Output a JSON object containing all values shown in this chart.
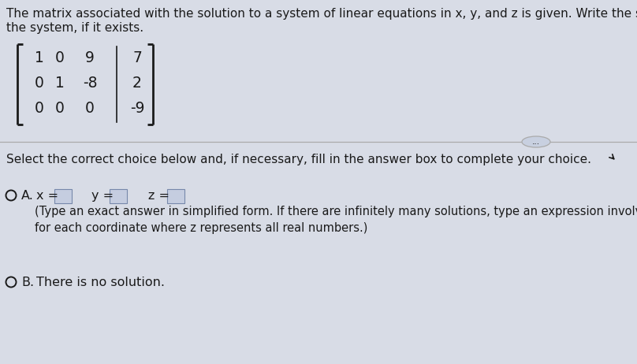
{
  "background_color": "#d8dce6",
  "title_line1": "The matrix associated with the solution to a system of linear equations in x, y, and z is given. Write the solution to",
  "title_line2": "the system, if it exists.",
  "matrix": [
    [
      "1",
      "0",
      "9",
      "7"
    ],
    [
      "0",
      "1",
      "-8",
      "2"
    ],
    [
      "0",
      "0",
      "0",
      "-9"
    ]
  ],
  "separator_label": "...",
  "question_text": "Select the correct choice below and, if necessary, fill in the answer box to complete your choice.",
  "option_A_sub": "(Type an exact answer in simplified form. If there are infinitely many solutions, type an expression involving z\nfor each coordinate where z represents all real numbers.)",
  "option_B_text": "There is no solution.",
  "font_color": "#1a1a1a",
  "line_color": "#888888",
  "box_fill_color": "#c5cde0",
  "separator_box_color": "#c8d0e0",
  "title_fontsize": 11.0,
  "matrix_fontsize": 13.5,
  "question_fontsize": 11.0,
  "option_fontsize": 11.5,
  "sub_fontsize": 10.5
}
